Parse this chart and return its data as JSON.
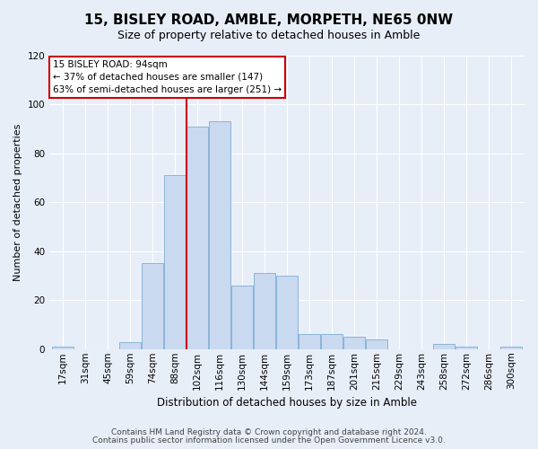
{
  "title_line1": "15, BISLEY ROAD, AMBLE, MORPETH, NE65 0NW",
  "title_line2": "Size of property relative to detached houses in Amble",
  "xlabel": "Distribution of detached houses by size in Amble",
  "ylabel": "Number of detached properties",
  "bar_labels": [
    "17sqm",
    "31sqm",
    "45sqm",
    "59sqm",
    "74sqm",
    "88sqm",
    "102sqm",
    "116sqm",
    "130sqm",
    "144sqm",
    "159sqm",
    "173sqm",
    "187sqm",
    "201sqm",
    "215sqm",
    "229sqm",
    "243sqm",
    "258sqm",
    "272sqm",
    "286sqm",
    "300sqm"
  ],
  "bar_values": [
    1,
    0,
    0,
    3,
    35,
    71,
    91,
    93,
    26,
    31,
    30,
    6,
    6,
    5,
    4,
    0,
    0,
    2,
    1,
    0,
    1
  ],
  "bar_color": "#c9d9f0",
  "bar_edge_color": "#8ab4d8",
  "vline_color": "#cc0000",
  "vline_x_index": 5.5,
  "annotation_line1": "15 BISLEY ROAD: 94sqm",
  "annotation_line2": "← 37% of detached houses are smaller (147)",
  "annotation_line3": "63% of semi-detached houses are larger (251) →",
  "annotation_box_color": "white",
  "annotation_box_edge_color": "#cc0000",
  "ylim": [
    0,
    120
  ],
  "yticks": [
    0,
    20,
    40,
    60,
    80,
    100,
    120
  ],
  "footer_line1": "Contains HM Land Registry data © Crown copyright and database right 2024.",
  "footer_line2": "Contains public sector information licensed under the Open Government Licence v3.0.",
  "background_color": "#e8eef8",
  "plot_bg_color": "#e8eef8",
  "grid_color": "#ffffff",
  "title1_fontsize": 11,
  "title2_fontsize": 9,
  "xlabel_fontsize": 8.5,
  "ylabel_fontsize": 8,
  "tick_fontsize": 7.5,
  "footer_fontsize": 6.5
}
